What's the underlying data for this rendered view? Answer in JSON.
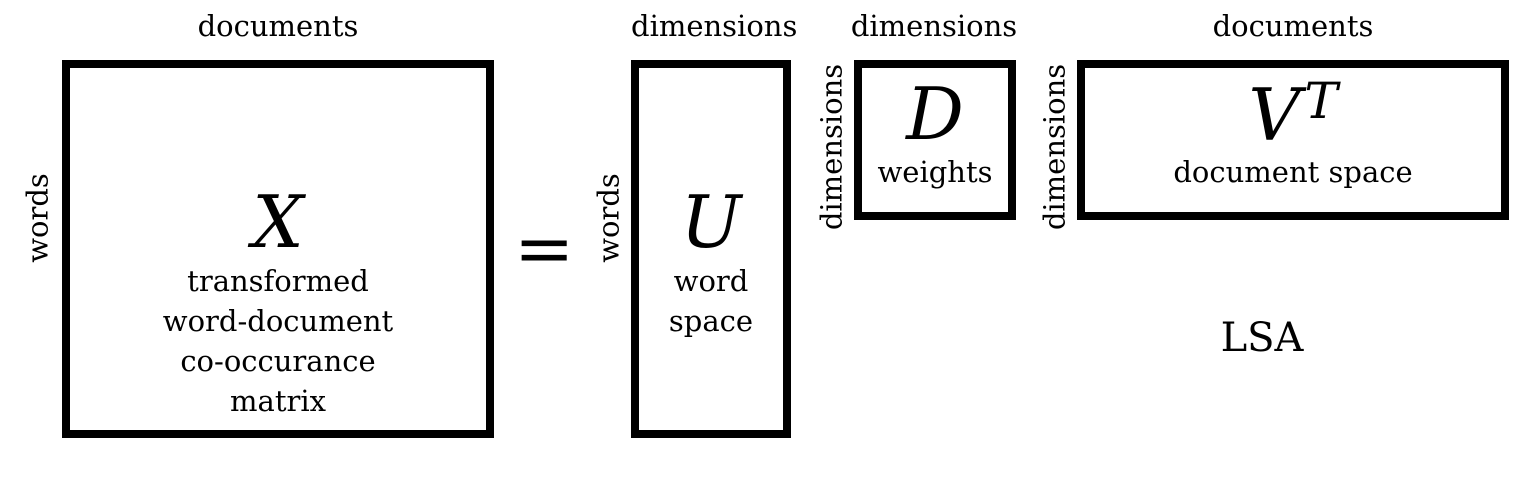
{
  "matrices": {
    "x": {
      "top_label": "documents",
      "side_label": "words",
      "symbol": "X",
      "description": [
        "transformed",
        "word-document",
        "co-occurance",
        "matrix"
      ]
    },
    "u": {
      "top_label": "dimensions",
      "side_label": "words",
      "symbol": "U",
      "description": [
        "word",
        "space"
      ]
    },
    "d": {
      "top_label": "dimensions",
      "side_label": "dimensions",
      "symbol": "D",
      "description": [
        "weights"
      ]
    },
    "vt": {
      "top_label": "documents",
      "side_label": "dimensions",
      "symbol": "V",
      "superscript": "T",
      "description": [
        "document space"
      ]
    }
  },
  "equals_sign": "=",
  "caption": "LSA"
}
